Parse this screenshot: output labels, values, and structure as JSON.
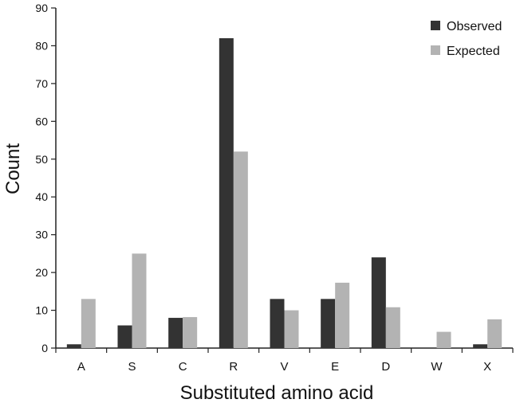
{
  "chart_data": {
    "type": "bar",
    "categories": [
      "A",
      "S",
      "C",
      "R",
      "V",
      "E",
      "D",
      "W",
      "X"
    ],
    "series": [
      {
        "name": "Observed",
        "color": "#333333",
        "values": [
          1,
          6,
          8,
          82,
          13,
          13,
          24,
          0,
          1
        ]
      },
      {
        "name": "Expected",
        "color": "#b3b3b3",
        "values": [
          13,
          25,
          8.2,
          52,
          10,
          17.3,
          10.8,
          4.3,
          7.6
        ]
      }
    ],
    "xlabel": "Substituted amino acid",
    "ylabel": "Count",
    "ylim": [
      0,
      90
    ],
    "yticks": [
      "0",
      "10",
      "20",
      "30",
      "40",
      "50",
      "60",
      "70",
      "80",
      "90"
    ],
    "grid": false,
    "legend_position": "top-right"
  }
}
